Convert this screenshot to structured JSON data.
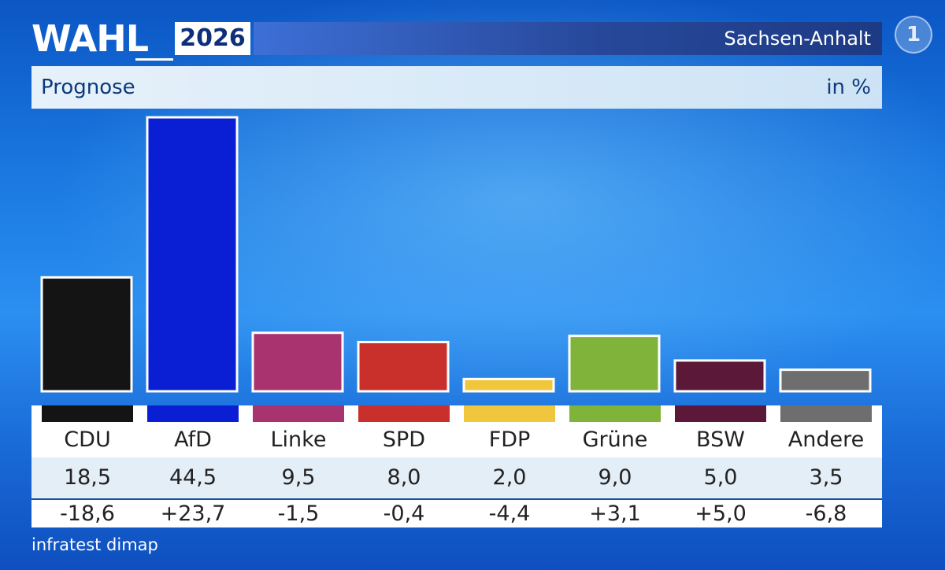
{
  "header": {
    "logo_word": "WAHL",
    "logo_year": "2026",
    "region": "Sachsen-Anhalt",
    "station_logo": "1"
  },
  "subheader": {
    "label": "Prognose",
    "unit": "in %"
  },
  "chart_data": {
    "type": "bar",
    "title": "Prognose",
    "ylabel": "in %",
    "categories": [
      "CDU",
      "AfD",
      "Linke",
      "SPD",
      "FDP",
      "Grüne",
      "BSW",
      "Andere"
    ],
    "values": [
      18.5,
      44.5,
      9.5,
      8.0,
      2.0,
      9.0,
      5.0,
      3.5
    ],
    "value_labels": [
      "18,5",
      "44,5",
      "9,5",
      "8,0",
      "2,0",
      "9,0",
      "5,0",
      "3,5"
    ],
    "changes": [
      "-18,6",
      "+23,7",
      "-1,5",
      "-0,4",
      "-4,4",
      "+3,1",
      "+5,0",
      "-6,8"
    ],
    "colors": [
      "#141414",
      "#0a1fd4",
      "#a8336e",
      "#c9302c",
      "#f0c73c",
      "#7fb33a",
      "#5b1838",
      "#6e6e6e"
    ],
    "ylim": [
      0,
      44.5
    ],
    "grid": false,
    "legend": "none"
  },
  "source": "infratest dimap"
}
